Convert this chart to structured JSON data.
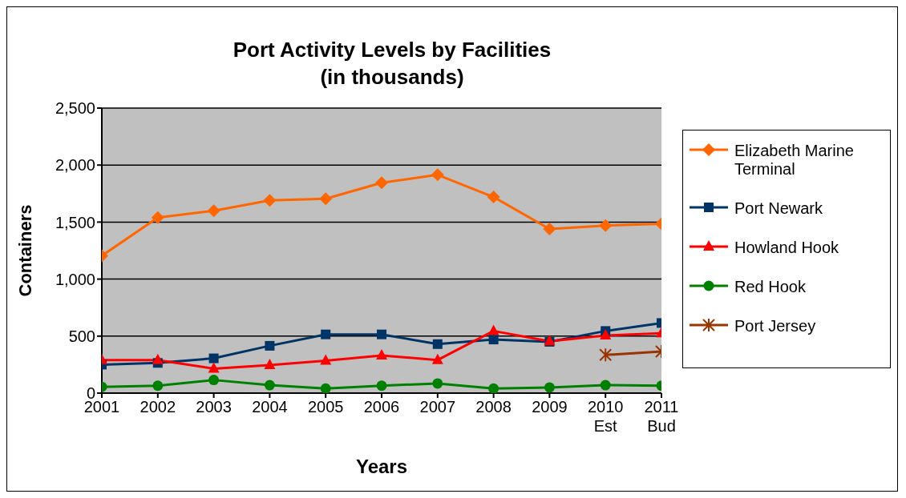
{
  "chart_data": {
    "type": "line",
    "title": "Port Activity Levels by Facilities\n(in thousands)",
    "xlabel": "Years",
    "ylabel": "Containers",
    "categories": [
      "2001",
      "2002",
      "2003",
      "2004",
      "2005",
      "2006",
      "2007",
      "2008",
      "2009",
      "2010\nEst",
      "2011\nBud"
    ],
    "series": [
      {
        "name": "Elizabeth Marine Terminal",
        "color": "#ff6600",
        "marker": "diamond",
        "values": [
          1205,
          1540,
          1600,
          1690,
          1705,
          1845,
          1915,
          1720,
          1440,
          1470,
          1485
        ]
      },
      {
        "name": "Port Newark",
        "color": "#003366",
        "marker": "square",
        "values": [
          250,
          265,
          305,
          415,
          515,
          515,
          430,
          470,
          450,
          545,
          615
        ]
      },
      {
        "name": "Howland Hook",
        "color": "#ff0000",
        "marker": "triangle",
        "values": [
          290,
          290,
          215,
          245,
          285,
          330,
          290,
          545,
          455,
          505,
          525
        ]
      },
      {
        "name": "Red Hook",
        "color": "#008000",
        "marker": "circle",
        "values": [
          55,
          65,
          115,
          70,
          40,
          65,
          85,
          40,
          50,
          70,
          65
        ]
      },
      {
        "name": "Port Jersey",
        "color": "#993300",
        "marker": "cross",
        "values": [
          null,
          null,
          null,
          null,
          null,
          null,
          null,
          null,
          null,
          335,
          365
        ]
      }
    ],
    "ylim": [
      0,
      2500
    ],
    "yticks": [
      {
        "value": 0,
        "label": "0"
      },
      {
        "value": 500,
        "label": "500"
      },
      {
        "value": 1000,
        "label": "1,000"
      },
      {
        "value": 1500,
        "label": "1,500"
      },
      {
        "value": 2000,
        "label": "2,000"
      },
      {
        "value": 2500,
        "label": "2,500"
      }
    ],
    "grid": "y",
    "legend": "right"
  }
}
